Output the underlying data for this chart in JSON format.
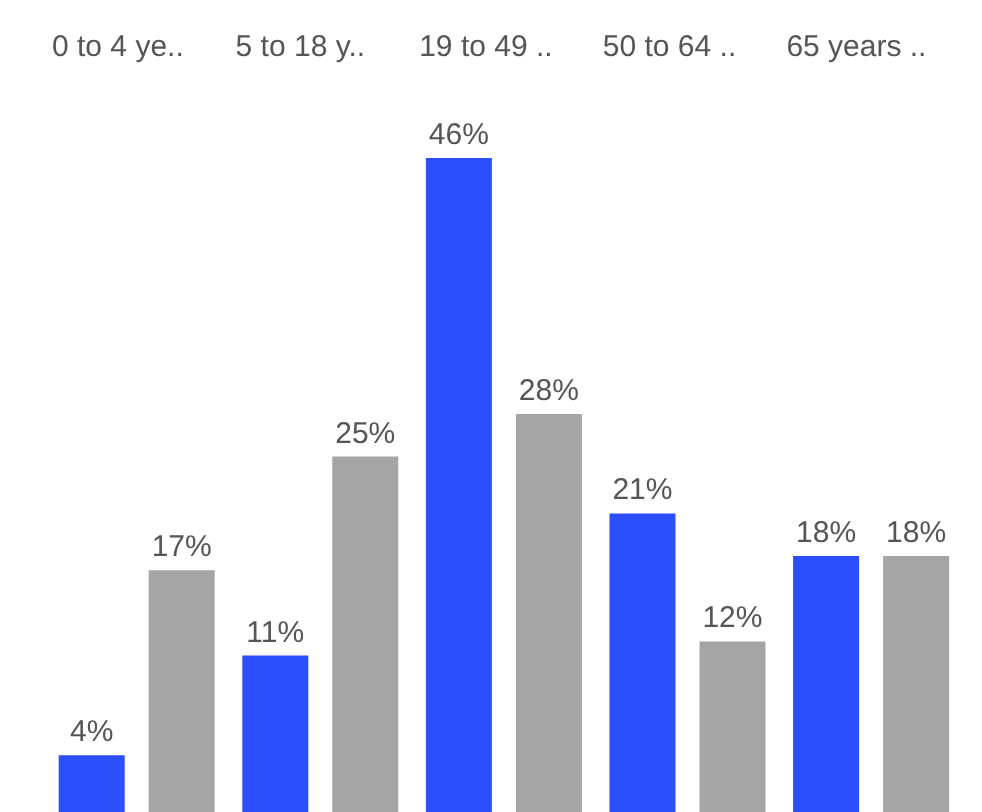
{
  "chart_data": {
    "type": "bar",
    "categories": [
      "0 to 4 ye..",
      "5 to 18 y..",
      "19 to 49 ..",
      "50 to 64 ..",
      "65 years .."
    ],
    "series": [
      {
        "color": "#2b4ffa",
        "values": [
          4,
          11,
          46,
          21,
          18
        ],
        "value_labels": [
          "4%",
          "11%",
          "46%",
          "21%",
          "18%"
        ]
      },
      {
        "color": "#a5a5a5",
        "values": [
          17,
          25,
          28,
          12,
          18
        ],
        "value_labels": [
          "17%",
          "25%",
          "28%",
          "12%",
          "18%"
        ]
      }
    ]
  }
}
